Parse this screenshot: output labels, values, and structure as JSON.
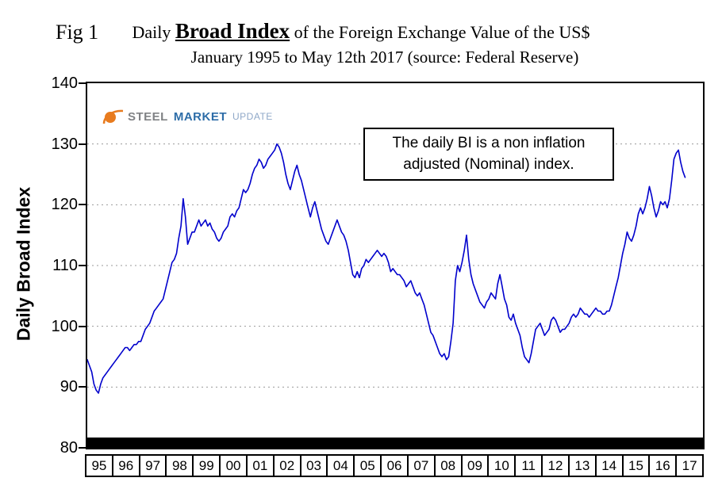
{
  "header": {
    "fig_label": "Fig 1",
    "title_prefix": "Daily ",
    "title_emphasis": "Broad Index",
    "title_suffix": " of the Foreign Exchange Value of the US$",
    "subtitle": "January 1995 to May 12th 2017 (source: Federal Reserve)"
  },
  "logo": {
    "word1": "STEEL",
    "word2": "MARKET",
    "word3": "UPDATE",
    "word1_color": "#808285",
    "word2_color": "#2D6DA8",
    "word3_color": "#8FA8C8",
    "swoosh_color": "#E87B1E"
  },
  "annotation": {
    "line1": "The daily BI is a non inflation",
    "line2": "adjusted (Nominal) index."
  },
  "chart_data": {
    "type": "line",
    "title": "Daily Broad Index of the Foreign Exchange Value of the US$",
    "subtitle": "January 1995 to May 12th 2017 (source: Federal Reserve)",
    "ylabel": "Daily Broad Index",
    "xlabel": "",
    "ylim": [
      80,
      140
    ],
    "y_ticks": [
      140,
      130,
      120,
      110,
      100,
      90,
      80
    ],
    "grid": "horizontal dashed",
    "legend": "none",
    "line_color": "#0000CC",
    "x_axis_range": [
      1995,
      2018
    ],
    "x_tick_labels": [
      "95",
      "96",
      "97",
      "98",
      "99",
      "00",
      "01",
      "02",
      "03",
      "04",
      "05",
      "06",
      "07",
      "08",
      "09",
      "10",
      "11",
      "12",
      "13",
      "14",
      "15",
      "16",
      "17"
    ],
    "x_start_year": 1995,
    "x_end_label": "May 12th 2017",
    "granularity": "monthly (estimated from plotted daily line)",
    "values": [
      94.5,
      93.5,
      92.5,
      90.5,
      89.5,
      89,
      90.5,
      91.5,
      92,
      92.5,
      93,
      93.5,
      94,
      94.5,
      95,
      95.5,
      96,
      96.5,
      96.5,
      96,
      96.5,
      97,
      97,
      97.5,
      97.5,
      98.5,
      99.5,
      100,
      100.5,
      101.5,
      102.5,
      103,
      103.5,
      104,
      104.5,
      106,
      107.5,
      109,
      110.5,
      111,
      112,
      114.5,
      116.5,
      121,
      118,
      113.5,
      114.5,
      115.5,
      115.5,
      116.5,
      117.5,
      116.5,
      117,
      117.5,
      116.5,
      117,
      116,
      115.5,
      114.5,
      114,
      114.5,
      115.5,
      116,
      116.5,
      118,
      118.5,
      118,
      119,
      119.5,
      121,
      122.5,
      122,
      122.5,
      123.5,
      125,
      126,
      126.5,
      127.5,
      127,
      126,
      126.5,
      127.5,
      128,
      128.5,
      129,
      130,
      129.5,
      128.5,
      127,
      125,
      123.5,
      122.5,
      124,
      125.5,
      126.5,
      125,
      124,
      122.5,
      121,
      119.5,
      118,
      119.5,
      120.5,
      119,
      117.5,
      116,
      115,
      114,
      113.5,
      114.5,
      115.5,
      116.5,
      117.5,
      116.5,
      115.5,
      115,
      114,
      112.5,
      110.5,
      108.5,
      108,
      109,
      108,
      109.5,
      110,
      111,
      110.5,
      111,
      111.5,
      112,
      112.5,
      112,
      111.5,
      112,
      111.5,
      110.5,
      109,
      109.5,
      109,
      108.5,
      108.5,
      108,
      107.5,
      106.5,
      107,
      107.5,
      106.5,
      105.5,
      105,
      105.5,
      104.5,
      103.5,
      102,
      100.5,
      99,
      98.5,
      97.5,
      96.5,
      95.5,
      95,
      95.5,
      94.5,
      95,
      97.5,
      100.5,
      107.5,
      110,
      109,
      110.5,
      112.5,
      115,
      111,
      108.5,
      107,
      106,
      105,
      104,
      103.5,
      103,
      104,
      104.5,
      105.5,
      105,
      104.5,
      107,
      108.5,
      106.5,
      104.5,
      103.5,
      101.5,
      101,
      102,
      100.5,
      99.5,
      98.5,
      96.5,
      95,
      94.5,
      94,
      95.5,
      97.5,
      99.5,
      100,
      100.5,
      99.5,
      98.5,
      99,
      99.5,
      101,
      101.5,
      101,
      100,
      99,
      99.5,
      99.5,
      100,
      100.5,
      101.5,
      102,
      101.5,
      102,
      103,
      102.5,
      102,
      102,
      101.5,
      102,
      102.5,
      103,
      102.5,
      102.5,
      102,
      102,
      102.5,
      102.5,
      103.5,
      105,
      106.5,
      108,
      110,
      112,
      113.5,
      115.5,
      114.5,
      114,
      115,
      116.5,
      118.5,
      119.5,
      118.5,
      119.5,
      121,
      123,
      121.5,
      119.5,
      118,
      119,
      120.5,
      120,
      120.5,
      119.5,
      121,
      124,
      127.5,
      128.5,
      129,
      127,
      125.5,
      124.5
    ]
  }
}
